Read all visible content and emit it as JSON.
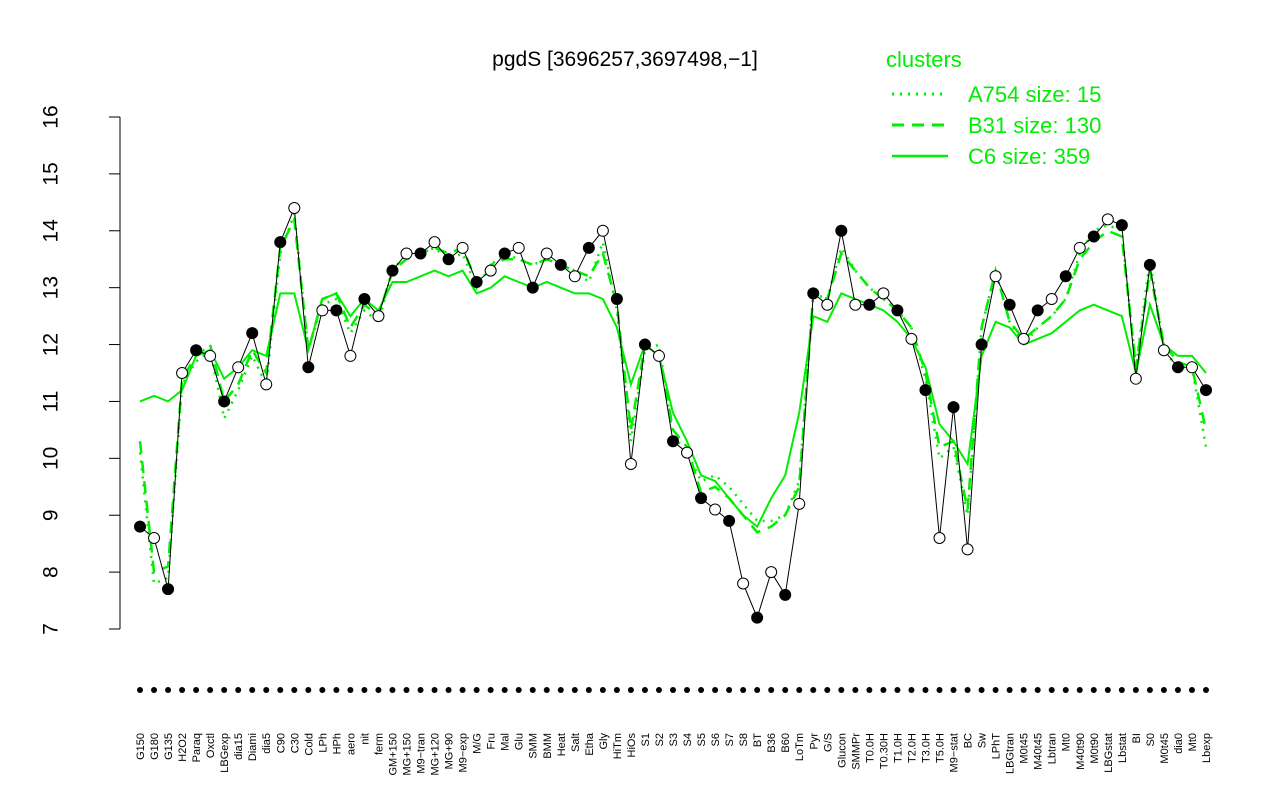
{
  "chart_data": {
    "type": "line",
    "title": "pgdS [3696257,3697498,−1]",
    "ylim": [
      7,
      16
    ],
    "y_ticks": [
      7,
      8,
      9,
      10,
      11,
      12,
      13,
      14,
      15,
      16
    ],
    "x_tick_labels": [
      "G150",
      "G180",
      "G135",
      "H2O2",
      "Paraq",
      "Oxctl",
      "LBGexp",
      "dia15",
      "Diami",
      "dia5",
      "C90",
      "C30",
      "Cold",
      "LPh",
      "HPh",
      "aero",
      "nit",
      "ferm",
      "GM+150",
      "MG+150",
      "M9−tran",
      "MG+120",
      "MG+90",
      "M9−exp",
      "M/G",
      "Fru",
      "Mal",
      "Glu",
      "SMM",
      "BMM",
      "Heat",
      "Salt",
      "Etha",
      "Gly",
      "HiTm",
      "HiOs",
      "S1",
      "S2",
      "S3",
      "S4",
      "S5",
      "S6",
      "S7",
      "S8",
      "BT",
      "B36",
      "B60",
      "LoTm",
      "Pyr",
      "G/S",
      "Glucon",
      "SMMPr",
      "T0.0H",
      "T0.30H",
      "T1.0H",
      "T2.0H",
      "T3.0H",
      "T5.0H",
      "M9−stat",
      "BC",
      "Sw",
      "LPhT",
      "LBGtran",
      "M0t45",
      "M40t45",
      "Lbtran",
      "Mt0",
      "M40t90",
      "M0t90",
      "LBGstat",
      "Lbstat",
      "BI",
      "S0",
      "M0t45",
      "dia0",
      "Mt0",
      "Lbexp"
    ],
    "legend": {
      "title": "clusters",
      "position": "top-right",
      "entries": [
        {
          "label": "A754 size: 15",
          "style": "dotted"
        },
        {
          "label": "B31 size: 130",
          "style": "dashed"
        },
        {
          "label": "C6 size: 359",
          "style": "solid"
        }
      ]
    },
    "series": [
      {
        "name": "A754 size: 15",
        "style": "dotted",
        "color": "#00ee00",
        "values": [
          10.1,
          7.8,
          7.9,
          11.3,
          11.7,
          11.9,
          10.7,
          11.2,
          11.8,
          11.3,
          13.6,
          14.3,
          11.9,
          12.7,
          12.8,
          12.2,
          12.6,
          12.4,
          13.3,
          13.6,
          13.6,
          13.7,
          13.5,
          13.6,
          13.0,
          13.4,
          13.6,
          13.5,
          13.4,
          13.5,
          13.4,
          13.3,
          13.1,
          13.8,
          12.6,
          10.3,
          11.9,
          12.0,
          10.4,
          10.1,
          9.6,
          9.7,
          9.5,
          9.2,
          8.9,
          8.9,
          9.0,
          9.6,
          12.9,
          12.8,
          13.7,
          13.3,
          13.0,
          12.8,
          12.6,
          12.3,
          11.4,
          10.0,
          10.2,
          9.0,
          12.3,
          13.3,
          12.4,
          12.0,
          12.3,
          12.5,
          12.8,
          13.6,
          14.0,
          14.1,
          14.0,
          11.6,
          13.5,
          11.9,
          11.6,
          11.6,
          10.2
        ]
      },
      {
        "name": "B31 size: 130",
        "style": "dashed",
        "color": "#00ee00",
        "values": [
          10.3,
          8.0,
          8.1,
          11.4,
          11.8,
          12.0,
          11.0,
          11.3,
          11.9,
          11.5,
          13.7,
          14.2,
          11.9,
          12.8,
          12.9,
          12.3,
          12.7,
          12.5,
          13.3,
          13.5,
          13.6,
          13.7,
          13.6,
          13.7,
          13.1,
          13.4,
          13.5,
          13.5,
          13.4,
          13.5,
          13.4,
          13.3,
          13.2,
          13.6,
          12.7,
          10.5,
          12.0,
          11.9,
          10.5,
          10.2,
          9.4,
          9.5,
          9.3,
          9.0,
          8.7,
          8.8,
          9.0,
          9.5,
          12.9,
          12.8,
          13.6,
          13.3,
          13.0,
          12.8,
          12.6,
          12.3,
          11.5,
          10.2,
          10.3,
          9.1,
          12.3,
          13.3,
          12.4,
          12.1,
          12.3,
          12.5,
          12.8,
          13.5,
          13.8,
          14.0,
          13.9,
          11.6,
          13.3,
          12.0,
          11.7,
          11.6,
          10.5
        ]
      },
      {
        "name": "C6 size: 359",
        "style": "solid",
        "color": "#00ee00",
        "values": [
          11.0,
          11.1,
          11.0,
          11.2,
          11.8,
          11.9,
          11.4,
          11.6,
          11.9,
          11.8,
          12.9,
          12.9,
          11.9,
          12.8,
          12.9,
          12.5,
          12.8,
          12.6,
          13.1,
          13.1,
          13.2,
          13.3,
          13.2,
          13.3,
          12.9,
          13.0,
          13.2,
          13.1,
          13.0,
          13.1,
          13.0,
          12.9,
          12.9,
          12.8,
          12.3,
          11.3,
          12.0,
          11.8,
          10.8,
          10.3,
          9.7,
          9.6,
          9.3,
          9.0,
          8.8,
          9.3,
          9.7,
          10.8,
          12.5,
          12.4,
          12.9,
          12.8,
          12.7,
          12.6,
          12.4,
          12.1,
          11.6,
          10.6,
          10.3,
          9.9,
          11.8,
          12.4,
          12.3,
          12.0,
          12.1,
          12.2,
          12.4,
          12.6,
          12.7,
          12.6,
          12.5,
          11.5,
          12.7,
          12.0,
          11.8,
          11.8,
          11.5
        ]
      },
      {
        "name": "",
        "style": "points",
        "color": "#000000",
        "values": [
          8.8,
          8.6,
          7.7,
          11.5,
          11.9,
          11.8,
          11.0,
          11.6,
          12.2,
          11.3,
          13.8,
          14.4,
          11.6,
          12.6,
          12.6,
          11.8,
          12.8,
          12.5,
          13.3,
          13.6,
          13.6,
          13.8,
          13.5,
          13.7,
          13.1,
          13.3,
          13.6,
          13.7,
          13.0,
          13.6,
          13.4,
          13.2,
          13.7,
          14.0,
          12.8,
          9.9,
          12.0,
          11.8,
          10.3,
          10.1,
          9.3,
          9.1,
          8.9,
          7.8,
          7.2,
          8.0,
          7.6,
          9.2,
          12.9,
          12.7,
          14.0,
          12.7,
          12.7,
          12.9,
          12.6,
          12.1,
          11.2,
          8.6,
          10.9,
          8.4,
          12.0,
          13.2,
          12.7,
          12.1,
          12.6,
          12.8,
          13.2,
          13.7,
          13.9,
          14.2,
          14.1,
          11.4,
          13.4,
          11.9,
          11.6,
          11.6,
          11.2
        ]
      }
    ]
  }
}
